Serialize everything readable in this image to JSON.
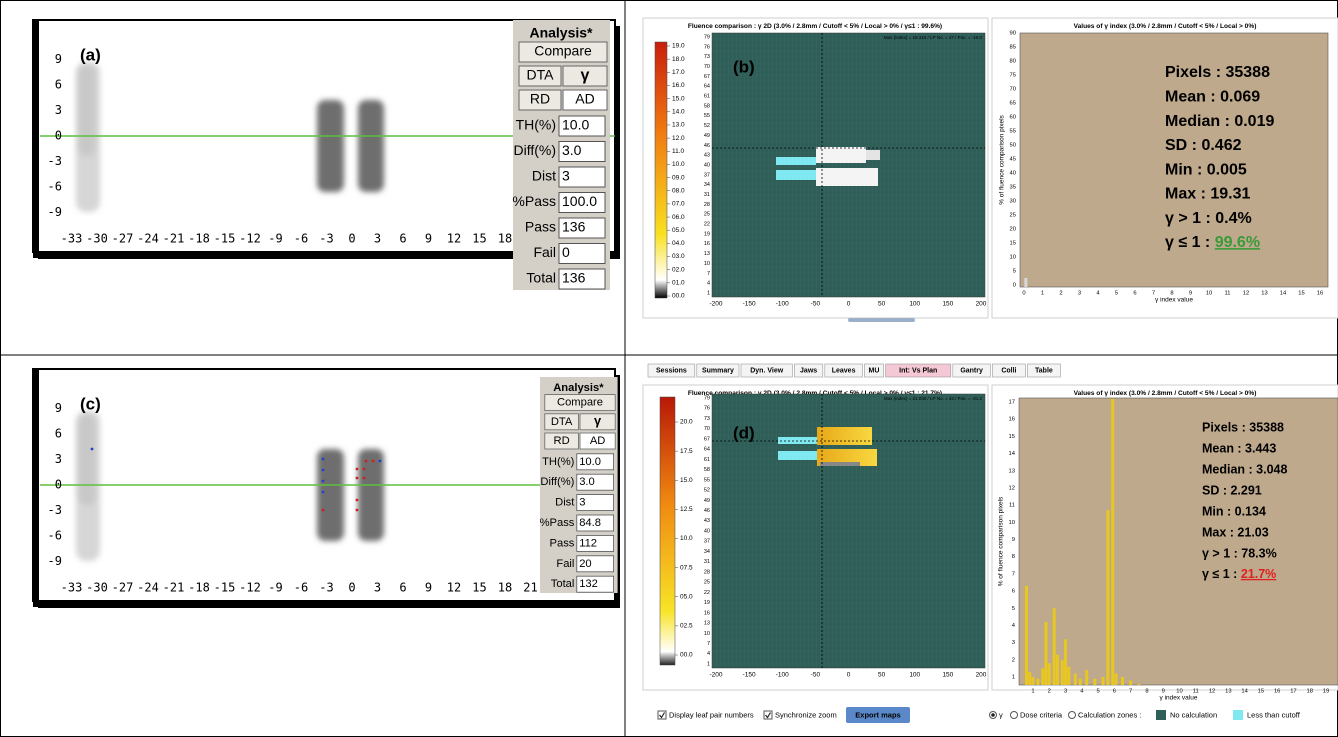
{
  "panels": {
    "a": {
      "label": "(a)",
      "yticks": [
        9,
        6,
        3,
        0,
        -3,
        -6,
        -9
      ],
      "xticks": [
        -33,
        -30,
        -27,
        -24,
        -21,
        -18,
        -15,
        -12,
        -9,
        -6,
        -3,
        0,
        3,
        6,
        9,
        12,
        15,
        18
      ],
      "analysis": {
        "title": "Analysis*",
        "compare": "Compare",
        "dta": "DTA",
        "gamma": "γ",
        "rd": "RD",
        "ad": "AD",
        "fields": [
          [
            "TH(%)",
            "10.0"
          ],
          [
            "Diff(%)",
            "3.0"
          ],
          [
            "Dist",
            "3"
          ],
          [
            "%Pass",
            "100.0"
          ],
          [
            "Pass",
            "136"
          ],
          [
            "Fail",
            "0"
          ],
          [
            "Total",
            "136"
          ]
        ]
      }
    },
    "b": {
      "label": "(b)",
      "fluence": {
        "title": "Fluence comparison : γ 2D (3.0% / 2.8mm / Cutoff < 5% / Local > 0% / γ≤1 : 99.6%)",
        "info": "Max (index) = 19.310 / LP No. = 47 / Pos. = -10.0",
        "colorbar": [
          "19.0",
          "18.0",
          "17.0",
          "16.0",
          "15.0",
          "14.0",
          "13.0",
          "12.0",
          "11.0",
          "10.0",
          "09.0",
          "08.0",
          "07.0",
          "06.0",
          "05.0",
          "04.0",
          "03.0",
          "02.0",
          "01.0",
          "00.0"
        ],
        "yticks": [
          79,
          76,
          73,
          70,
          67,
          64,
          61,
          58,
          55,
          52,
          49,
          46,
          43,
          40,
          37,
          34,
          31,
          28,
          25,
          22,
          19,
          16,
          13,
          10,
          7,
          4,
          1
        ],
        "xticks": [
          -200,
          -150,
          -100,
          -50,
          0,
          50,
          100,
          150,
          200
        ]
      },
      "histogram": {
        "title": "Values of γ index (3.0% / 2.8mm / Cutoff < 5% / Local > 0%)",
        "ylabel": "% of fluence comparison pixels",
        "xlabel": "γ index value",
        "yticks": [
          0,
          5,
          10,
          15,
          20,
          25,
          30,
          35,
          40,
          45,
          50,
          55,
          60,
          65,
          70,
          75,
          80,
          85,
          90
        ],
        "xticks": [
          0,
          1,
          2,
          3,
          4,
          5,
          6,
          7,
          8,
          9,
          10,
          11,
          12,
          13,
          14,
          15,
          16
        ],
        "bars": [
          {
            "x": 0.1,
            "h": 2.5
          }
        ],
        "stats": [
          "Pixels : 35388",
          "Mean : 0.069",
          "Median : 0.019",
          "SD : 0.462",
          "Min : 0.005",
          "Max : 19.31",
          "γ > 1 : 0.4%"
        ],
        "pass_label": "γ ≤ 1 : ",
        "pass_value": "99.6%"
      }
    },
    "c": {
      "label": "(c)",
      "yticks": [
        9,
        6,
        3,
        0,
        -3,
        -6,
        -9
      ],
      "xticks": [
        -33,
        -30,
        -27,
        -24,
        -21,
        -18,
        -15,
        -12,
        -9,
        -6,
        -3,
        0,
        3,
        6,
        9,
        12,
        15,
        18,
        21
      ],
      "analysis": {
        "title": "Analysis*",
        "compare": "Compare",
        "dta": "DTA",
        "gamma": "γ",
        "rd": "RD",
        "ad": "AD",
        "fields": [
          [
            "TH(%)",
            "10.0"
          ],
          [
            "Diff(%)",
            "3.0"
          ],
          [
            "Dist",
            "3"
          ],
          [
            "%Pass",
            "84.8"
          ],
          [
            "Pass",
            "112"
          ],
          [
            "Fail",
            "20"
          ],
          [
            "Total",
            "132"
          ]
        ]
      }
    },
    "d": {
      "label": "(d)",
      "tabs": [
        "Sessions",
        "Summary",
        "Dyn. View",
        "Jaws",
        "Leaves",
        "MU",
        "Int: Vs Plan",
        "Gantry",
        "Colli",
        "Table"
      ],
      "fluence": {
        "title": "Fluence comparison : γ 2D (3.0% / 2.8mm / Cutoff < 5% / Local > 0% / γ≤1 : 21.7%)",
        "info": "Max (index) = 21.030 / LP No. = 42 / Pos. = -21.2",
        "colorbar": [
          "20.0",
          "17.5",
          "15.0",
          "12.5",
          "10.0",
          "07.5",
          "05.0",
          "02.5",
          "00.0"
        ],
        "yticks": [
          79,
          76,
          73,
          70,
          67,
          64,
          61,
          58,
          55,
          52,
          49,
          46,
          43,
          40,
          37,
          34,
          31,
          28,
          25,
          22,
          19,
          16,
          13,
          10,
          7,
          4,
          1
        ],
        "xticks": [
          -200,
          -150,
          -100,
          -50,
          0,
          50,
          100,
          150,
          200
        ]
      },
      "histogram": {
        "title": "Values of γ index (3.0% / 2.8mm / Cutoff < 5% / Local > 0%)",
        "ylabel": "% of fluence comparison pixels",
        "xlabel": "γ index value",
        "yticks": [
          1,
          2,
          3,
          4,
          5,
          6,
          7,
          8,
          9,
          10,
          11,
          12,
          13,
          14,
          15,
          16,
          17
        ],
        "xticks": [
          1,
          2,
          3,
          4,
          5,
          6,
          7,
          8,
          9,
          10,
          11,
          12,
          13,
          14,
          15,
          16,
          17,
          18,
          19
        ],
        "bars": [
          {
            "x": 0.6,
            "h": 6.3
          },
          {
            "x": 0.8,
            "h": 1.3
          },
          {
            "x": 1.0,
            "h": 1.0
          },
          {
            "x": 1.3,
            "h": 0.9
          },
          {
            "x": 1.6,
            "h": 1.5
          },
          {
            "x": 1.8,
            "h": 4.2
          },
          {
            "x": 2.0,
            "h": 1.8
          },
          {
            "x": 2.3,
            "h": 5.0
          },
          {
            "x": 2.5,
            "h": 2.3
          },
          {
            "x": 2.8,
            "h": 2.0
          },
          {
            "x": 3.0,
            "h": 3.2
          },
          {
            "x": 3.2,
            "h": 1.6
          },
          {
            "x": 3.6,
            "h": 1.2
          },
          {
            "x": 3.9,
            "h": 0.9
          },
          {
            "x": 4.3,
            "h": 1.4
          },
          {
            "x": 4.8,
            "h": 0.9
          },
          {
            "x": 5.3,
            "h": 1.0
          },
          {
            "x": 5.6,
            "h": 10.7
          },
          {
            "x": 5.9,
            "h": 17.2
          },
          {
            "x": 6.1,
            "h": 1.2
          },
          {
            "x": 6.5,
            "h": 1.0
          },
          {
            "x": 7.0,
            "h": 0.8
          },
          {
            "x": 7.5,
            "h": 0.6
          }
        ],
        "stats": [
          "Pixels : 35388",
          "Mean : 3.443",
          "Median : 3.048",
          "SD : 2.291",
          "Min : 0.134",
          "Max : 21.03",
          "γ > 1 : 78.3%"
        ],
        "pass_label": "γ ≤ 1 : ",
        "pass_value": "21.7%"
      },
      "controls": {
        "leaf_numbers": "Display leaf pair numbers",
        "sync_zoom": "Synchronize zoom",
        "export": "Export maps",
        "gamma": "γ",
        "dose": "Dose criteria",
        "zones": "Calculation zones :",
        "no_calc": "No calculation",
        "cutoff": "Less than cutoff"
      }
    }
  }
}
